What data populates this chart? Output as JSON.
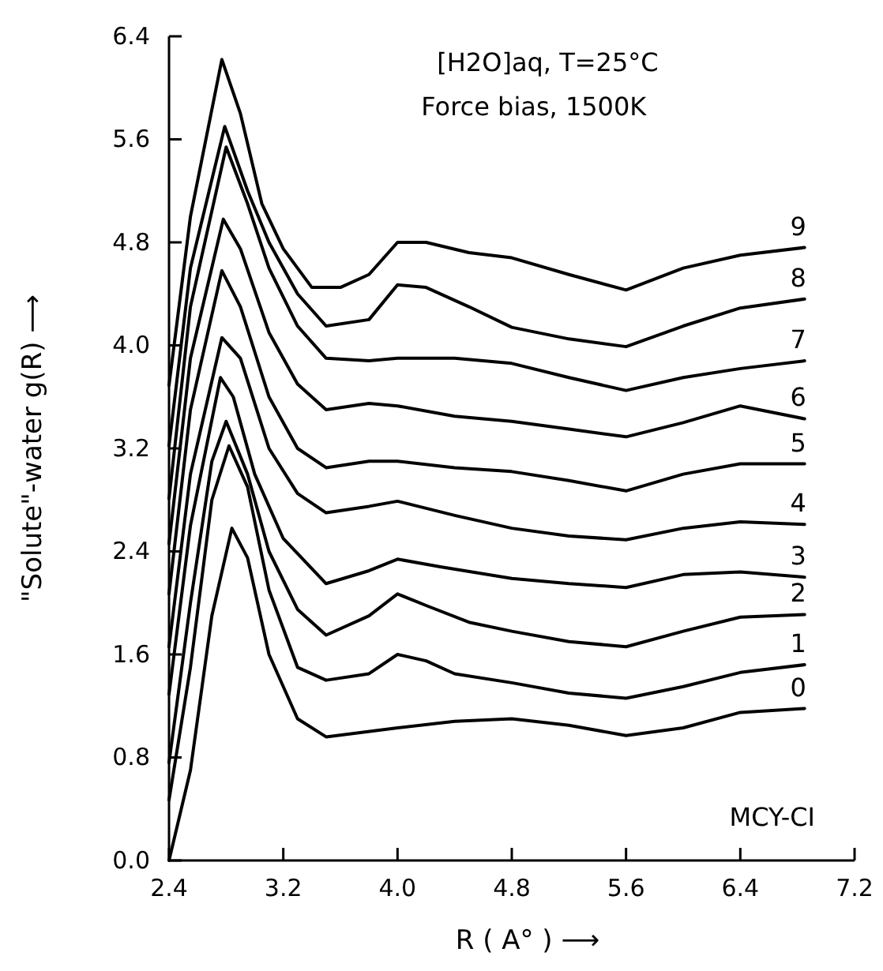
{
  "chart_data": {
    "type": "line",
    "xlabel": "R ( A° ) ⟶",
    "ylabel": "\"Solute\"-water g(R) ⟶",
    "annotations": [
      "[H2O]aq, T=25°C",
      "Force bias, 1500K",
      "MCY-CI"
    ],
    "xlim": [
      2.4,
      7.2
    ],
    "ylim": [
      0,
      6.4
    ],
    "xticks": [
      2.4,
      3.2,
      {
        "value": 4,
        "label": "4.0"
      },
      4.8,
      5.6,
      6.4,
      7.2
    ],
    "yticks": [
      {
        "value": 0,
        "label": "0.0"
      },
      0.8,
      1.6,
      2.4,
      3.2,
      {
        "value": 4,
        "label": "4.0"
      },
      4.8,
      5.6,
      6.4
    ],
    "grid": false,
    "legend": false,
    "marker": "none",
    "line_style": "solid",
    "series": [
      {
        "name": "0",
        "color": "#000000",
        "x": [
          2.4,
          2.55,
          2.7,
          2.84,
          2.95,
          3.1,
          3.3,
          3.5,
          4.0,
          4.4,
          4.8,
          5.2,
          5.6,
          6.0,
          6.4,
          6.85
        ],
        "values": [
          0.0,
          0.7,
          1.9,
          2.58,
          2.35,
          1.6,
          1.1,
          0.96,
          1.03,
          1.08,
          1.1,
          1.05,
          0.97,
          1.03,
          1.15,
          1.18
        ]
      },
      {
        "name": "1",
        "color": "#000000",
        "x": [
          2.4,
          2.55,
          2.7,
          2.82,
          2.95,
          3.1,
          3.3,
          3.5,
          3.8,
          4.0,
          4.2,
          4.4,
          4.8,
          5.2,
          5.6,
          6.0,
          6.4,
          6.85
        ],
        "values": [
          0.47,
          1.5,
          2.8,
          3.22,
          2.9,
          2.1,
          1.5,
          1.4,
          1.45,
          1.6,
          1.55,
          1.45,
          1.38,
          1.3,
          1.26,
          1.35,
          1.46,
          1.52
        ]
      },
      {
        "name": "2",
        "color": "#000000",
        "x": [
          2.4,
          2.55,
          2.7,
          2.8,
          2.95,
          3.1,
          3.3,
          3.5,
          3.8,
          4.0,
          4.2,
          4.5,
          4.8,
          5.2,
          5.6,
          6.0,
          6.4,
          6.85
        ],
        "values": [
          0.76,
          2.0,
          3.1,
          3.41,
          3.0,
          2.4,
          1.95,
          1.75,
          1.9,
          2.07,
          1.98,
          1.85,
          1.78,
          1.7,
          1.66,
          1.78,
          1.89,
          1.91
        ]
      },
      {
        "name": "3",
        "color": "#000000",
        "x": [
          2.4,
          2.55,
          2.76,
          2.85,
          3.0,
          3.2,
          3.5,
          3.8,
          4.0,
          4.3,
          4.8,
          5.2,
          5.6,
          6.0,
          6.4,
          6.85
        ],
        "values": [
          1.29,
          2.6,
          3.75,
          3.6,
          3.0,
          2.5,
          2.15,
          2.25,
          2.34,
          2.28,
          2.19,
          2.15,
          2.12,
          2.22,
          2.24,
          2.2
        ]
      },
      {
        "name": "4",
        "color": "#000000",
        "x": [
          2.4,
          2.55,
          2.77,
          2.9,
          3.1,
          3.3,
          3.5,
          3.8,
          4.0,
          4.4,
          4.8,
          5.2,
          5.6,
          6.0,
          6.4,
          6.85
        ],
        "values": [
          1.66,
          3.0,
          4.06,
          3.9,
          3.2,
          2.85,
          2.7,
          2.75,
          2.79,
          2.68,
          2.58,
          2.52,
          2.49,
          2.58,
          2.63,
          2.61
        ]
      },
      {
        "name": "5",
        "color": "#000000",
        "x": [
          2.4,
          2.55,
          2.77,
          2.9,
          3.1,
          3.3,
          3.5,
          3.8,
          4.0,
          4.4,
          4.8,
          5.2,
          5.6,
          6.0,
          6.4,
          6.85
        ],
        "values": [
          2.07,
          3.5,
          4.58,
          4.3,
          3.6,
          3.2,
          3.05,
          3.1,
          3.1,
          3.05,
          3.02,
          2.95,
          2.87,
          3.0,
          3.08,
          3.08
        ]
      },
      {
        "name": "6",
        "color": "#000000",
        "x": [
          2.4,
          2.55,
          2.78,
          2.9,
          3.1,
          3.3,
          3.5,
          3.8,
          4.0,
          4.4,
          4.8,
          5.2,
          5.6,
          6.0,
          6.4,
          6.85
        ],
        "values": [
          2.46,
          3.9,
          4.98,
          4.75,
          4.1,
          3.7,
          3.5,
          3.55,
          3.53,
          3.45,
          3.41,
          3.35,
          3.29,
          3.4,
          3.53,
          3.43
        ]
      },
      {
        "name": "7",
        "color": "#000000",
        "x": [
          2.4,
          2.55,
          2.8,
          2.95,
          3.1,
          3.3,
          3.5,
          3.8,
          4.0,
          4.4,
          4.8,
          5.2,
          5.6,
          6.0,
          6.4,
          6.85
        ],
        "values": [
          2.81,
          4.3,
          5.54,
          5.1,
          4.6,
          4.15,
          3.9,
          3.88,
          3.9,
          3.9,
          3.86,
          3.75,
          3.65,
          3.75,
          3.82,
          3.88
        ]
      },
      {
        "name": "8",
        "color": "#000000",
        "x": [
          2.4,
          2.55,
          2.79,
          2.95,
          3.1,
          3.3,
          3.5,
          3.8,
          4.0,
          4.2,
          4.5,
          4.8,
          5.2,
          5.6,
          6.0,
          6.4,
          6.85
        ],
        "values": [
          3.22,
          4.6,
          5.7,
          5.2,
          4.8,
          4.4,
          4.15,
          4.2,
          4.47,
          4.45,
          4.3,
          4.14,
          4.05,
          3.99,
          4.15,
          4.29,
          4.36
        ]
      },
      {
        "name": "9",
        "color": "#000000",
        "x": [
          2.4,
          2.55,
          2.77,
          2.9,
          3.05,
          3.2,
          3.4,
          3.6,
          3.8,
          4.0,
          4.2,
          4.5,
          4.8,
          5.2,
          5.6,
          6.0,
          6.4,
          6.85
        ],
        "values": [
          3.69,
          5.0,
          6.22,
          5.8,
          5.1,
          4.75,
          4.45,
          4.45,
          4.55,
          4.8,
          4.8,
          4.72,
          4.68,
          4.55,
          4.43,
          4.6,
          4.7,
          4.76
        ]
      }
    ]
  }
}
